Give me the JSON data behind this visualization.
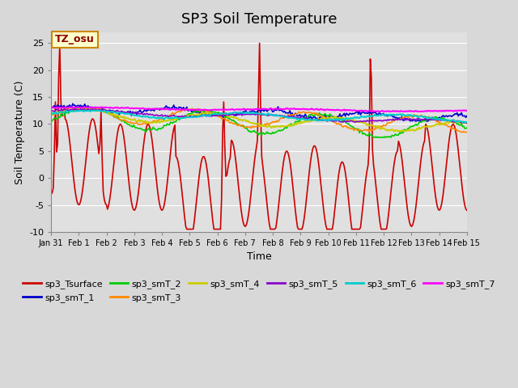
{
  "title": "SP3 Soil Temperature",
  "xlabel": "Time",
  "ylabel": "Soil Temperature (C)",
  "ylim": [
    -10,
    27
  ],
  "yticks": [
    -10,
    -5,
    0,
    5,
    10,
    15,
    20,
    25
  ],
  "bg_color": "#d8d8d8",
  "plot_bg_color": "#e0e0e0",
  "legend_label": "TZ_osu",
  "series_colors": {
    "sp3_Tsurface": "#cc0000",
    "sp3_smT_1": "#0000cc",
    "sp3_smT_2": "#00cc00",
    "sp3_smT_3": "#ff8800",
    "sp3_smT_4": "#cccc00",
    "sp3_smT_5": "#8800cc",
    "sp3_smT_6": "#00cccc",
    "sp3_smT_7": "#ff00ff"
  },
  "n_points": 384,
  "xtick_positions": [
    0,
    1,
    2,
    3,
    4,
    5,
    6,
    7,
    8,
    9,
    10,
    11,
    12,
    13,
    14,
    15
  ],
  "xtick_labels": [
    "Jan 31",
    "Feb 1",
    "Feb 2",
    "Feb 3",
    "Feb 4",
    "Feb 5",
    "Feb 6",
    "Feb 7",
    "Feb 8",
    "Feb 9",
    "Feb 10",
    "Feb 11",
    "Feb 12",
    "Feb 13",
    "Feb 14",
    "Feb 15"
  ],
  "title_fontsize": 13,
  "tick_fontsize": 8,
  "label_fontsize": 9,
  "legend_fontsize": 8
}
